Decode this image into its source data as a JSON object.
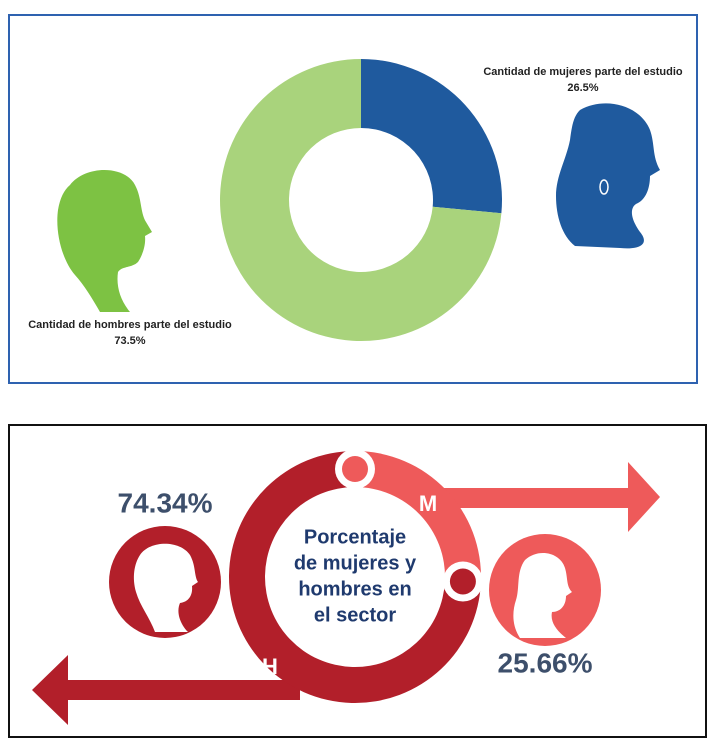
{
  "chart_data": [
    {
      "type": "donut",
      "categories": [
        "Cantidad de hombres parte del estudio",
        "Cantidad de mujeres parte del estudio"
      ],
      "values": [
        73.5,
        26.5
      ],
      "value_labels": [
        "73.5%",
        "26.5%"
      ],
      "colors": [
        "#a9d37c",
        "#1f5a9e"
      ]
    },
    {
      "type": "ring",
      "center_text": [
        "Porcentaje",
        "de mujeres y",
        "hombres en",
        "el sector"
      ],
      "categories": [
        "H",
        "M"
      ],
      "values": [
        74.34,
        25.66
      ],
      "value_labels": [
        "74.34%",
        "25.66%"
      ],
      "colors": [
        "#b21f2a",
        "#ee5a5a"
      ]
    }
  ]
}
